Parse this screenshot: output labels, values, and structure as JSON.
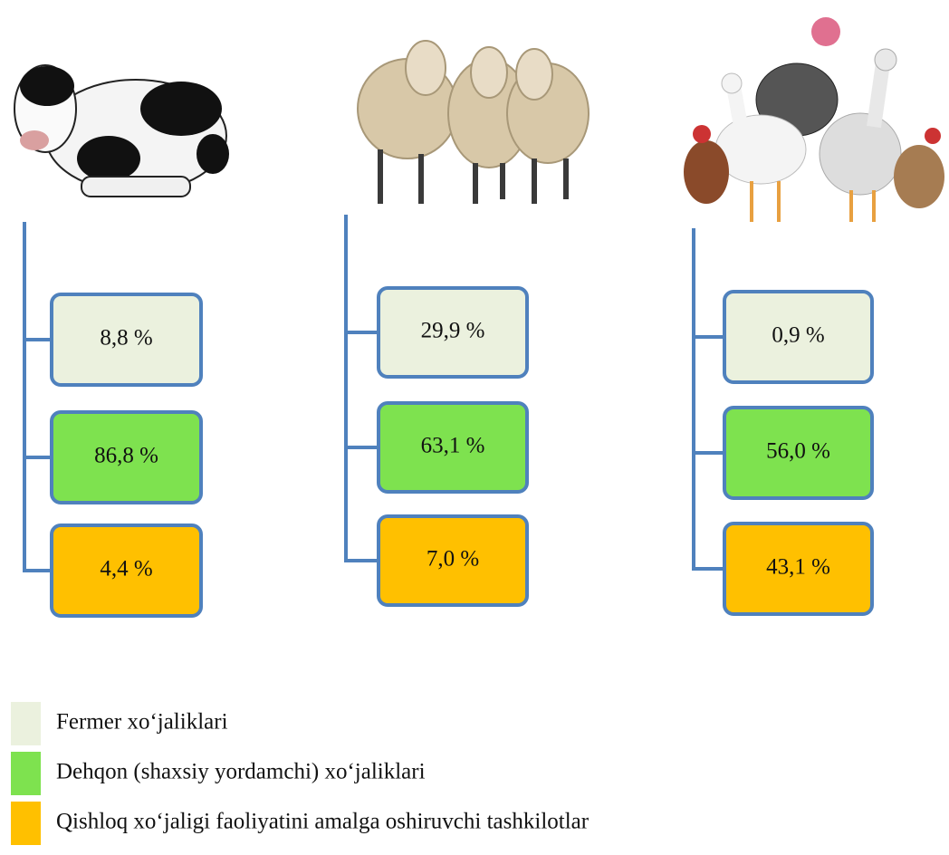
{
  "columns": [
    {
      "boxes": [
        "8,8 %",
        "86,8 %",
        "4,4 %"
      ]
    },
    {
      "boxes": [
        "29,9 %",
        "63,1 %",
        "7,0 %"
      ]
    },
    {
      "boxes": [
        "0,9 %",
        "56,0 %",
        "43,1 %"
      ]
    }
  ],
  "legend": [
    {
      "label": "Fermer xo‘jaliklari",
      "color": "#ebf1de"
    },
    {
      "label": "Dehqon (shaxsiy yordamchi) xo‘jaliklari",
      "color": "#7ee24f"
    },
    {
      "label": "Qishloq xo‘jaligi faoliyatini amalga oshiruvchi tashkilotlar",
      "color": "#ffc000"
    }
  ]
}
